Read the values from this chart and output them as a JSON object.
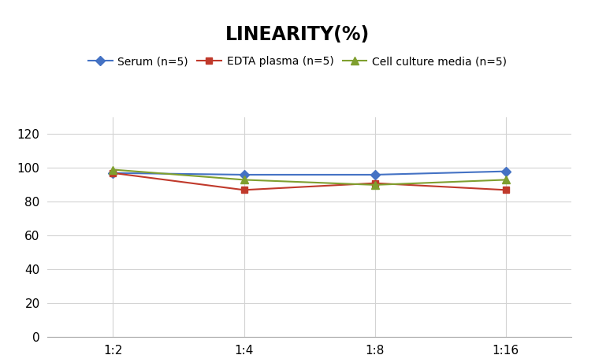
{
  "title": "LINEARITY(%)",
  "x_labels": [
    "1:2",
    "1:4",
    "1:8",
    "1:16"
  ],
  "x_positions": [
    0,
    1,
    2,
    3
  ],
  "series": [
    {
      "label": "Serum (n=5)",
      "values": [
        97,
        96,
        96,
        98
      ],
      "color": "#4472C4",
      "marker": "D",
      "markersize": 6
    },
    {
      "label": "EDTA plasma (n=5)",
      "values": [
        97,
        87,
        91,
        87
      ],
      "color": "#C0392B",
      "marker": "s",
      "markersize": 6
    },
    {
      "label": "Cell culture media (n=5)",
      "values": [
        99,
        93,
        90,
        93
      ],
      "color": "#7F9F2F",
      "marker": "^",
      "markersize": 7
    }
  ],
  "ylim": [
    0,
    130
  ],
  "yticks": [
    0,
    20,
    40,
    60,
    80,
    100,
    120
  ],
  "background_color": "#ffffff",
  "grid_color": "#d3d3d3",
  "title_fontsize": 17,
  "legend_fontsize": 10,
  "tick_fontsize": 11
}
